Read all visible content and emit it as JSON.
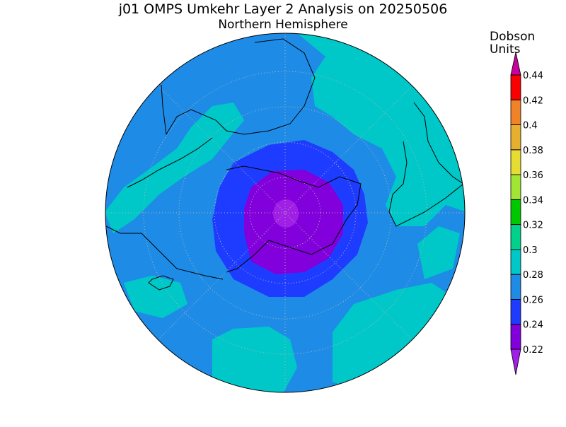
{
  "title": "j01 OMPS Umkehr Layer 2 Analysis on 20250506",
  "subtitle": "Northern Hemisphere",
  "colorbar": {
    "label": [
      "Dobson",
      "Units"
    ],
    "ticks": [
      0.22,
      0.24,
      0.26,
      0.28,
      0.3,
      0.32,
      0.34,
      0.36,
      0.38,
      0.4,
      0.42,
      0.44
    ],
    "colors": [
      "#a01ee6",
      "#8200dc",
      "#1e3cff",
      "#1e8ce6",
      "#00c8c8",
      "#00d28c",
      "#00c800",
      "#a0e632",
      "#e6dc32",
      "#e6af2d",
      "#f08228",
      "#fa0000",
      "#c8009b"
    ]
  }
}
